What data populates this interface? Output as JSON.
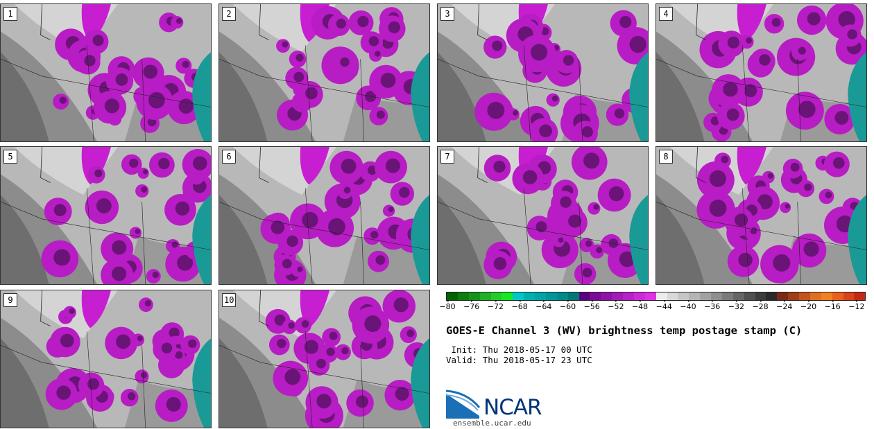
{
  "panels": [
    {
      "label": "1"
    },
    {
      "label": "2"
    },
    {
      "label": "3"
    },
    {
      "label": "4"
    },
    {
      "label": "5"
    },
    {
      "label": "6"
    },
    {
      "label": "7"
    },
    {
      "label": "8"
    },
    {
      "label": "9"
    },
    {
      "label": "10"
    }
  ],
  "colorbar": {
    "ticks": [
      "−80",
      "−76",
      "−72",
      "−68",
      "−64",
      "−60",
      "−56",
      "−52",
      "−48",
      "−44",
      "−40",
      "−36",
      "−32",
      "−28",
      "−24",
      "−20",
      "−16",
      "−12"
    ],
    "colors": [
      "#006400",
      "#0d7d0d",
      "#15931a",
      "#1fb127",
      "#24cc2a",
      "#16e822",
      "#00c8c8",
      "#00b0b0",
      "#00a4a4",
      "#00969a",
      "#008a8a",
      "#007878",
      "#5a0080",
      "#7a0a9a",
      "#8e14a8",
      "#a41ab8",
      "#b820c8",
      "#cc2ad6",
      "#e030e6",
      "#ececec",
      "#d8d8d8",
      "#c6c6c6",
      "#b4b4b4",
      "#a2a2a2",
      "#8e8e8e",
      "#7a7a7a",
      "#666666",
      "#505050",
      "#3c3c3c",
      "#2a2a2a",
      "#7a2a16",
      "#a03c18",
      "#c4541c",
      "#e07020",
      "#f08020",
      "#e8601c",
      "#d84418",
      "#c42a12"
    ]
  },
  "title": "GOES-E Channel 3 (WV) brightness temp postage stamp (C)",
  "init_line": " Init: Thu 2018-05-17 00 UTC",
  "valid_line": "Valid: Thu 2018-05-17 23 UTC",
  "logo_text": "NCAR",
  "site": "ensemble.ucar.edu"
}
